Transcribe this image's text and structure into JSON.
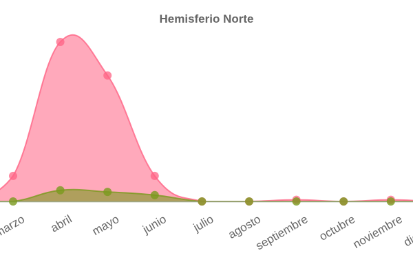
{
  "chart_data": {
    "type": "area",
    "title": "Hemisferio Norte",
    "categories": [
      "marzo",
      "abril",
      "mayo",
      "junio",
      "julio",
      "agosto",
      "septiembre",
      "octubre",
      "noviembre",
      "diciembre"
    ],
    "ylim": [
      0,
      100
    ],
    "grid": false,
    "series": [
      {
        "color": "#ff6384",
        "values": [
          16,
          100,
          79,
          16,
          0,
          0,
          1,
          0,
          1,
          0
        ]
      },
      {
        "color": "#7a9a1e",
        "values": [
          0,
          7,
          6,
          4,
          0,
          0,
          0,
          0,
          0,
          0
        ]
      }
    ]
  }
}
